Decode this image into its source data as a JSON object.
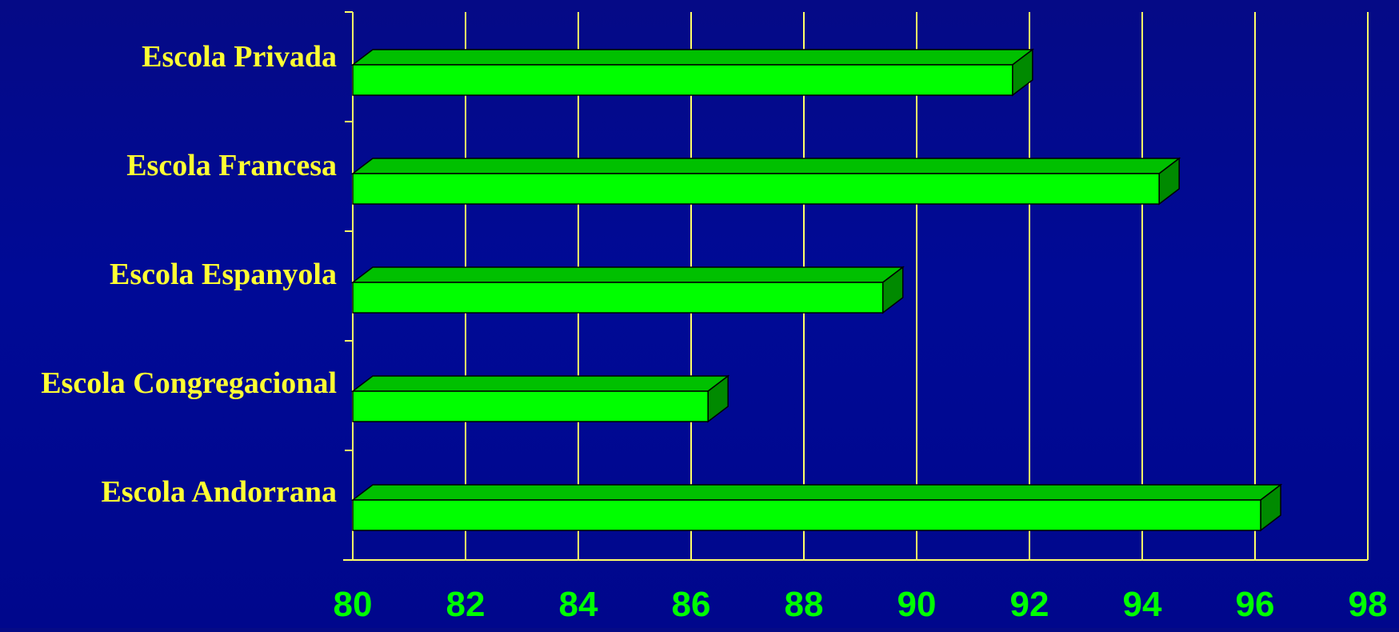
{
  "chart_data": {
    "type": "bar",
    "orientation": "horizontal",
    "style": "3d",
    "categories": [
      "Escola Andorrana",
      "Escola Congregacional",
      "Escola Espanyola",
      "Escola Francesa",
      "Escola Privada"
    ],
    "values": [
      96.1,
      86.3,
      89.4,
      94.3,
      91.7
    ],
    "xlim": [
      80,
      98
    ],
    "x_ticks": [
      "80",
      "82",
      "84",
      "86",
      "88",
      "90",
      "92",
      "94",
      "96",
      "98"
    ],
    "title": "",
    "xlabel": "",
    "ylabel": "",
    "grid": true,
    "legend": "none",
    "colors": {
      "bar_front": "#00ff00",
      "bar_top": "#00c000",
      "bar_side": "#008a00",
      "grid": "#ffff66",
      "category_text": "#ffff33",
      "tick_text": "#00ff00"
    }
  }
}
